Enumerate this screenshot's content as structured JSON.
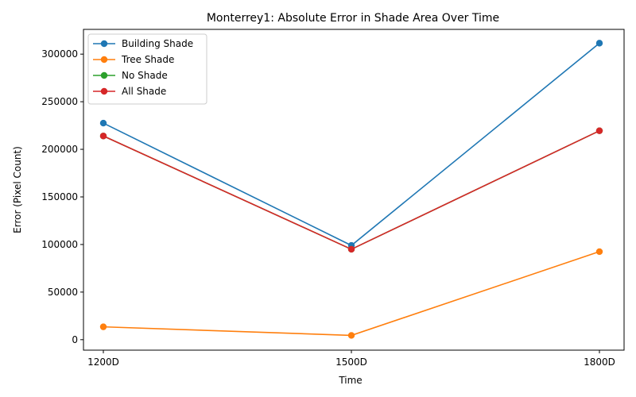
{
  "chart_data": {
    "type": "line",
    "title": "Monterrey1: Absolute Error in Shade Area Over Time",
    "xlabel": "Time",
    "ylabel": "Error (Pixel Count)",
    "categories": [
      "1200D",
      "1500D",
      "1800D"
    ],
    "ylim": [
      -11000,
      326000
    ],
    "yticks": [
      0,
      50000,
      100000,
      150000,
      200000,
      250000,
      300000
    ],
    "grid": false,
    "legend_position": "top-left",
    "series": [
      {
        "name": "Building Shade",
        "color": "#1f77b4",
        "values": [
          227500,
          99000,
          311500
        ]
      },
      {
        "name": "Tree Shade",
        "color": "#ff7f0e",
        "values": [
          13500,
          4500,
          92500
        ]
      },
      {
        "name": "No Shade",
        "color": "#2ca02c",
        "values": [
          214000,
          95000,
          219500
        ]
      },
      {
        "name": "All Shade",
        "color": "#d62728",
        "values": [
          214000,
          95000,
          219500
        ]
      }
    ]
  }
}
